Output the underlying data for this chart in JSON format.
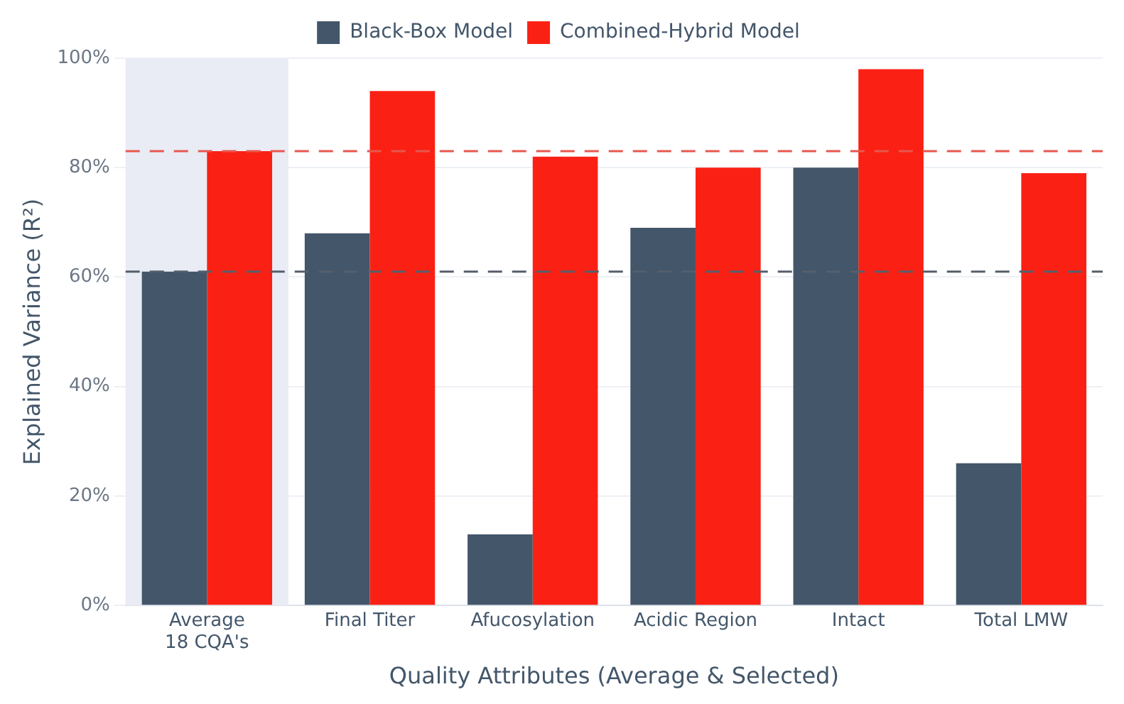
{
  "chart_data": {
    "type": "bar",
    "xlabel": "Quality Attributes (Average & Selected)",
    "ylabel": "Explained Variance (R²)",
    "categories": [
      "Average\n18 CQA's",
      "Final Titer",
      "Afucosylation",
      "Acidic Region",
      "Intact",
      "Total LMW"
    ],
    "series": [
      {
        "name": "Black-Box Model",
        "color": "#43566a",
        "values": [
          61,
          68,
          13,
          69,
          80,
          26
        ]
      },
      {
        "name": "Combined-Hybrid Model",
        "color": "#fa2114",
        "values": [
          83,
          94,
          82,
          80,
          98,
          79
        ]
      }
    ],
    "ylim": [
      0,
      100
    ],
    "yticks": [
      {
        "value": 0,
        "label": "0%"
      },
      {
        "value": 20,
        "label": "20%"
      },
      {
        "value": 40,
        "label": "40%"
      },
      {
        "value": 60,
        "label": "60%"
      },
      {
        "value": 80,
        "label": "80%"
      },
      {
        "value": 100,
        "label": "100%"
      }
    ],
    "ref_lines": [
      {
        "axis": "y",
        "value": 83,
        "color": "#e8584f",
        "line_style": "dashed"
      },
      {
        "axis": "y",
        "value": 61,
        "color": "#555f6b",
        "line_style": "dashed"
      }
    ],
    "bands": [
      {
        "axis": "x",
        "from": "Average\n18 CQA's",
        "to": "Average\n18 CQA's",
        "color": "#e9ecf5"
      }
    ],
    "grid": "y",
    "legend": "top"
  }
}
